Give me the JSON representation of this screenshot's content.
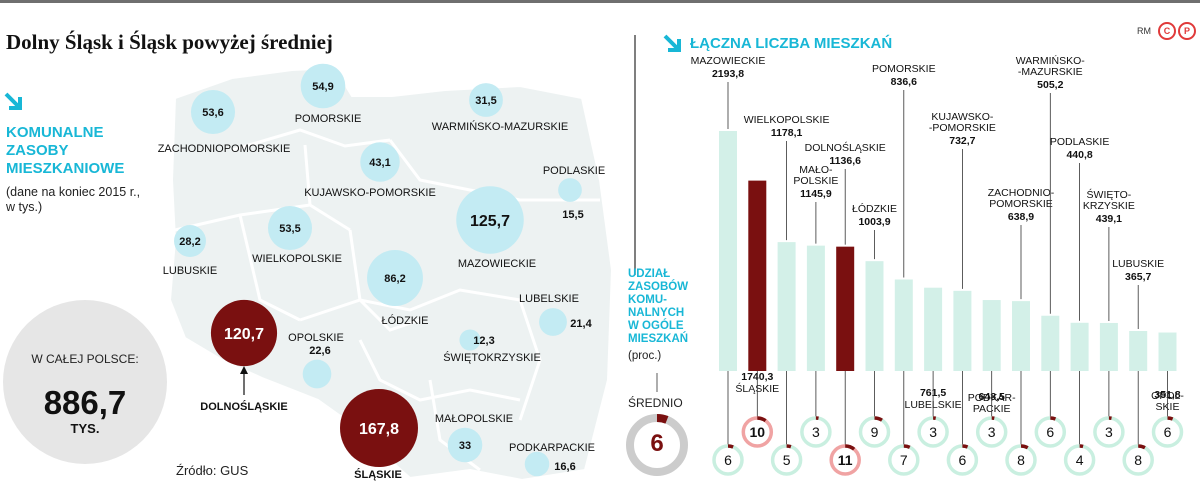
{
  "title": "Dolny Śląsk i Śląsk powyżej średniej",
  "branding": {
    "initials": "RM",
    "copyright_mark": "C",
    "phono_mark": "P"
  },
  "colors": {
    "bubble": "#c3ebf3",
    "highlight": "#7a1010",
    "bar": "#d3f0e8",
    "map": "#edf2f2",
    "accent": "#18b7d6",
    "total_circle": "#e6e6e6",
    "ring_grey": "#cccccc"
  },
  "map_panel": {
    "arrow_icon": "arrow-down-right-icon",
    "heading": [
      "KOMUNALNE",
      "ZASOBY",
      "MIESZKANIOWE"
    ],
    "note": [
      "(dane na koniec 2015 r.,",
      "w tys.)"
    ],
    "total_label": "W CAŁEJ POLSCE:",
    "total_value": "886,7",
    "total_unit": "TYS.",
    "source": "Źródło: GUS",
    "regions": [
      {
        "name": "POMORSKIE",
        "value": "54,9",
        "num": 54.9,
        "highlight": false
      },
      {
        "name": "ZACHODNIOPOMORSKIE",
        "value": "53,6",
        "num": 53.6,
        "highlight": false
      },
      {
        "name": "WARMIŃSKO-MAZURSKIE",
        "value": "31,5",
        "num": 31.5,
        "highlight": false
      },
      {
        "name": "KUJAWSKO-POMORSKIE",
        "value": "43,1",
        "num": 43.1,
        "highlight": false
      },
      {
        "name": "PODLASKIE",
        "value": "15,5",
        "num": 15.5,
        "highlight": false
      },
      {
        "name": "LUBUSKIE",
        "value": "28,2",
        "num": 28.2,
        "highlight": false
      },
      {
        "name": "WIELKOPOLSKIE",
        "value": "53,5",
        "num": 53.5,
        "highlight": false
      },
      {
        "name": "MAZOWIECKIE",
        "value": "125,7",
        "num": 125.7,
        "highlight": false
      },
      {
        "name": "ŁÓDZKIE",
        "value": "86,2",
        "num": 86.2,
        "highlight": false
      },
      {
        "name": "LUBELSKIE",
        "value": "21,4",
        "num": 21.4,
        "highlight": false
      },
      {
        "name": "DOLNOŚLĄSKIE",
        "value": "120,7",
        "num": 120.7,
        "highlight": true
      },
      {
        "name": "OPOLSKIE",
        "value": "22,6",
        "num": 22.6,
        "highlight": false
      },
      {
        "name": "ŚWIĘTOKRZYSKIE",
        "value": "12,3",
        "num": 12.3,
        "highlight": false
      },
      {
        "name": "ŚLĄSKIE",
        "value": "167,8",
        "num": 167.8,
        "highlight": true
      },
      {
        "name": "MAŁOPOLSKIE",
        "value": "33",
        "num": 33,
        "highlight": false
      },
      {
        "name": "PODKARPACKIE",
        "value": "16,6",
        "num": 16.6,
        "highlight": false
      }
    ]
  },
  "share_panel": {
    "heading": [
      "UDZIAŁ",
      "ZASOBÓW",
      "KOMU-",
      "NALNYCH",
      "W OGÓLE",
      "MIESZKAŃ"
    ],
    "unit": "(proc.)",
    "average_label": "ŚREDNIO",
    "average_value": "6",
    "average_num": 6
  },
  "bar_panel": {
    "arrow_icon": "arrow-down-right-icon",
    "heading": "ŁĄCZNA LICZBA MIESZKAŃ"
  },
  "chart_data": {
    "type": "bar",
    "title": "ŁĄCZNA LICZBA MIESZKAŃ",
    "categories": [
      "MAZOWIECKIE",
      "ŚLĄSKIE",
      "WIELKOPOLSKIE",
      "MAŁOPOLSKIE",
      "DOLNOŚLĄSKIE",
      "ŁÓDZKIE",
      "POMORSKIE",
      "LUBELSKIE",
      "KUJAWSKO-POMORSKIE",
      "PODKARPACKIE",
      "ZACHODNIOPOMORSKIE",
      "WARMIŃSKO-MAZURSKIE",
      "PODLASKIE",
      "ŚWIĘTOKRZYSKIE",
      "LUBUSKIE",
      "OPOLSKIE"
    ],
    "category_labels": [
      [
        "MAZOWIECKIE"
      ],
      [
        "ŚLĄSKIE"
      ],
      [
        "WIELKOPOLSKIE"
      ],
      [
        "MAŁO-",
        "POLSKIE"
      ],
      [
        "DOLNOŚLĄSKIE"
      ],
      [
        "ŁÓDZKIE"
      ],
      [
        "POMORSKIE"
      ],
      [
        "LUBELSKIE"
      ],
      [
        "KUJAWSKO-",
        "-POMORSKIE"
      ],
      [
        "PODKAR-",
        "PACKIE"
      ],
      [
        "ZACHODNIO-",
        "POMORSKIE"
      ],
      [
        "WARMIŃSKO-",
        "-MAZURSKIE"
      ],
      [
        "PODLASKIE"
      ],
      [
        "ŚWIĘTO-",
        "KRZYSKIE"
      ],
      [
        "LUBUSKIE"
      ],
      [
        "OPOL-",
        "SKIE"
      ]
    ],
    "values": [
      2193.8,
      1740.3,
      1178.1,
      1145.9,
      1136.6,
      1003.9,
      836.6,
      761.5,
      732.7,
      648.5,
      638.9,
      505.2,
      440.8,
      439.1,
      365.7,
      351.8
    ],
    "value_labels": [
      "2193,8",
      "1740,3",
      "1178,1",
      "1145,9",
      "1136,6",
      "1003,9",
      "836,6",
      "761,5",
      "732,7",
      "648,5",
      "638,9",
      "505,2",
      "440,8",
      "439,1",
      "365,7",
      "351,8"
    ],
    "highlighted": [
      false,
      true,
      false,
      false,
      true,
      false,
      false,
      false,
      false,
      false,
      false,
      false,
      false,
      false,
      false,
      false
    ],
    "share_percent": [
      6,
      10,
      5,
      3,
      11,
      9,
      7,
      3,
      6,
      3,
      8,
      6,
      4,
      3,
      8,
      6
    ],
    "share_unit": "proc."
  }
}
